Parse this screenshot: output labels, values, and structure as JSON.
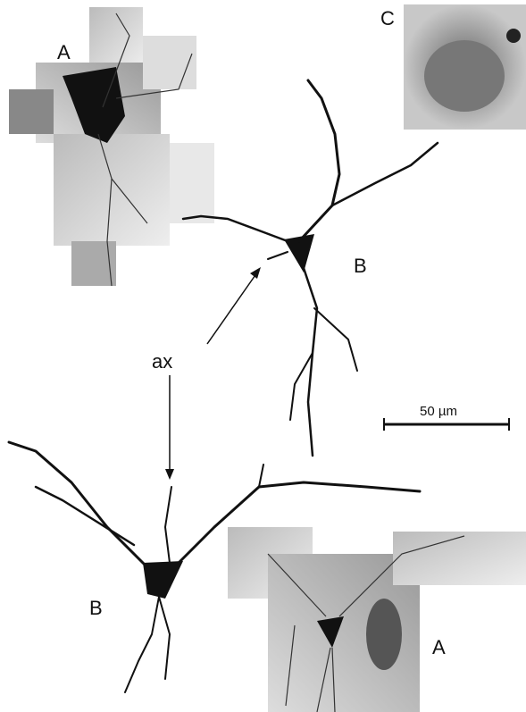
{
  "panel_labels": [
    "A",
    "C",
    "B",
    "B",
    "A"
  ],
  "annotations": {
    "axon": "ax",
    "scale_bar": "50 µm"
  }
}
